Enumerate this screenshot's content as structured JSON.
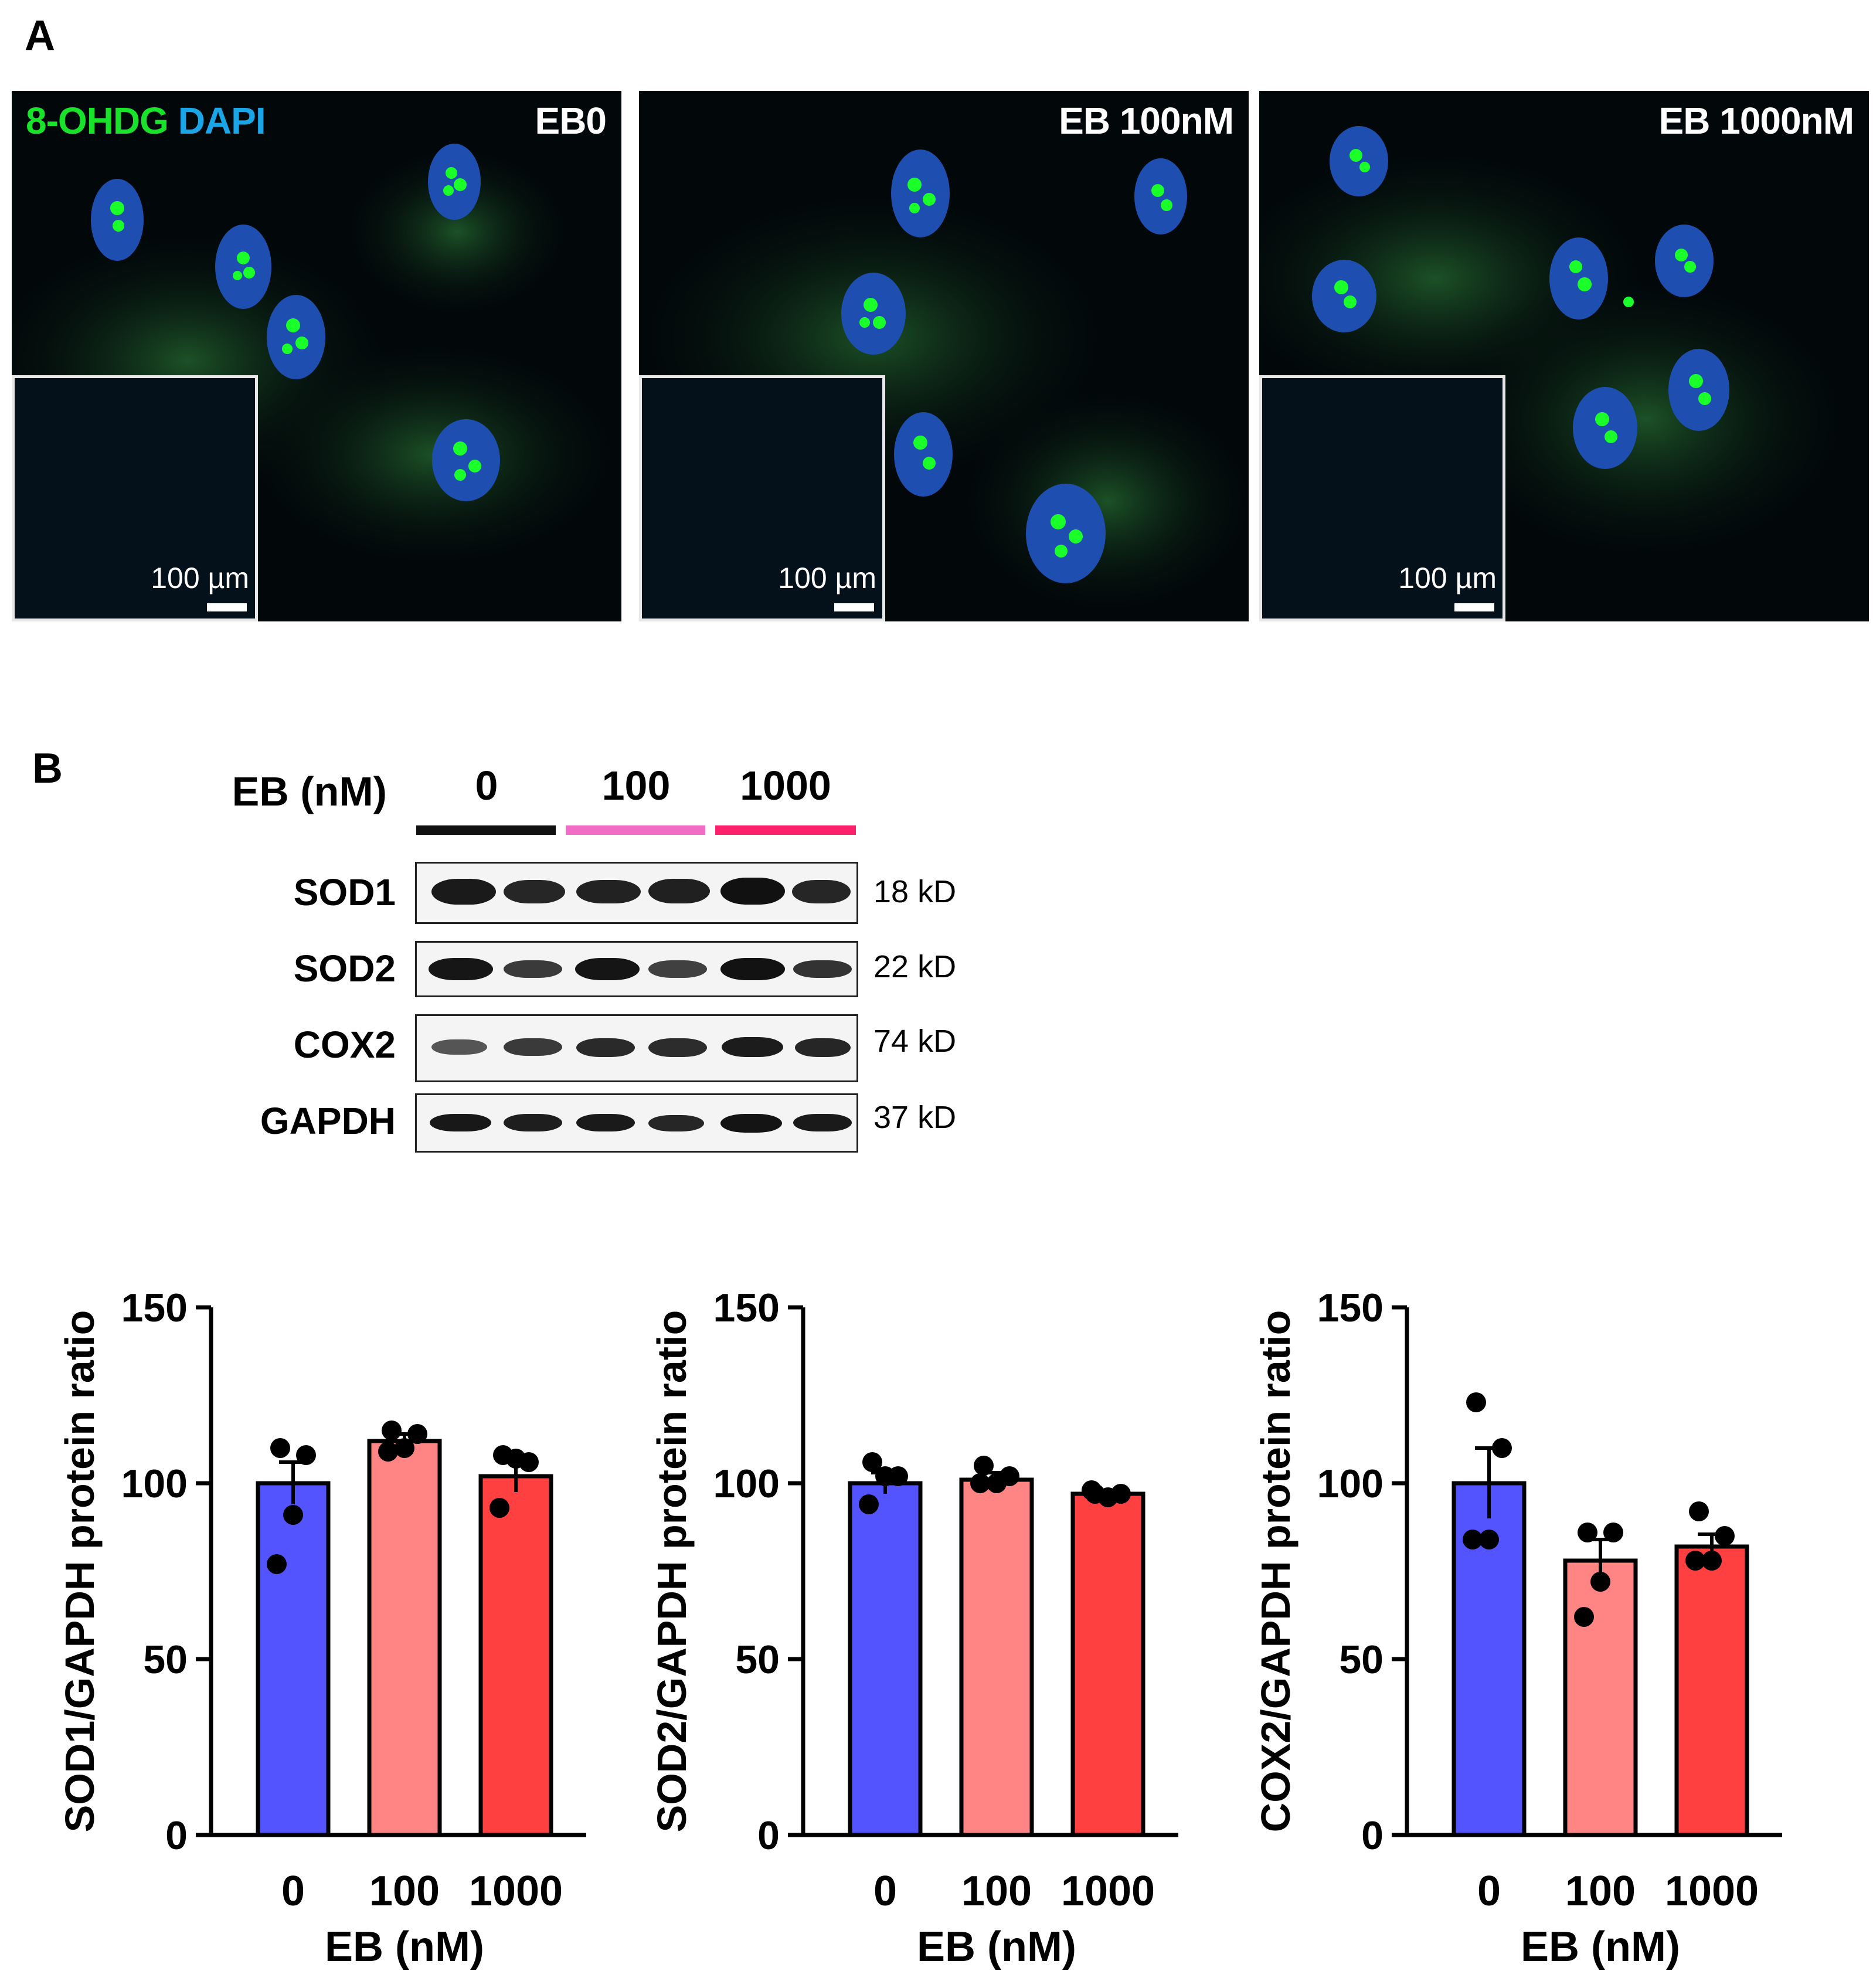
{
  "panels": {
    "a_label": "A",
    "b_label": "B"
  },
  "microscopy": {
    "stain_green": "8-OHDG",
    "stain_blue": "DAPI",
    "stain_green_color": "#19e22a",
    "stain_blue_color": "#1aa6e6",
    "scale_label": "100 µm",
    "images": [
      {
        "label": "EB0"
      },
      {
        "label": "EB 100nM"
      },
      {
        "label": "EB 1000nM"
      }
    ]
  },
  "blot": {
    "treatment_label": "EB (nM)",
    "groups": [
      {
        "label": "0",
        "color": "#111111"
      },
      {
        "label": "100",
        "color": "#f26bc4"
      },
      {
        "label": "1000",
        "color": "#ff1f6a"
      }
    ],
    "rows": [
      {
        "protein": "SOD1",
        "kd": "18 kD"
      },
      {
        "protein": "SOD2",
        "kd": "22 kD"
      },
      {
        "protein": "COX2",
        "kd": "74 kD"
      },
      {
        "protein": "GAPDH",
        "kd": "37 kD"
      }
    ]
  },
  "chart_data": [
    {
      "type": "bar",
      "categories": [
        "0",
        "100",
        "1000"
      ],
      "values": [
        100,
        112,
        102
      ],
      "errors": [
        6,
        2,
        4.5
      ],
      "points": [
        [
          110,
          108,
          91,
          77
        ],
        [
          115,
          114,
          110,
          109
        ],
        [
          108,
          106,
          107,
          93
        ]
      ],
      "xlabel": "EB (nM)",
      "ylabel": "SOD1/GAPDH protein ratio",
      "ylim": [
        0,
        150
      ],
      "yticks": [
        0,
        50,
        100,
        150
      ],
      "colors": [
        "#5454ff",
        "#ff8484",
        "#ff4040"
      ]
    },
    {
      "type": "bar",
      "categories": [
        "0",
        "100",
        "1000"
      ],
      "values": [
        100,
        101,
        97
      ],
      "errors": [
        3,
        2,
        1
      ],
      "points": [
        [
          106,
          102,
          102,
          94
        ],
        [
          105,
          102,
          100,
          100
        ],
        [
          97,
          97,
          96,
          98
        ]
      ],
      "xlabel": "EB (nM)",
      "ylabel": "SOD2/GAPDH protein ratio",
      "ylim": [
        0,
        150
      ],
      "yticks": [
        0,
        50,
        100,
        150
      ],
      "colors": [
        "#5454ff",
        "#ff8484",
        "#ff4040"
      ]
    },
    {
      "type": "bar",
      "categories": [
        "0",
        "100",
        "1000"
      ],
      "values": [
        100,
        78,
        82
      ],
      "errors": [
        10,
        6,
        3.5
      ],
      "points": [
        [
          123,
          110,
          84,
          84
        ],
        [
          86,
          86,
          72,
          62
        ],
        [
          92,
          85,
          78,
          78
        ]
      ],
      "xlabel": "EB (nM)",
      "ylabel": "COX2/GAPDH protein ratio",
      "ylim": [
        0,
        150
      ],
      "yticks": [
        0,
        50,
        100,
        150
      ],
      "colors": [
        "#5454ff",
        "#ff8484",
        "#ff4040"
      ]
    }
  ]
}
